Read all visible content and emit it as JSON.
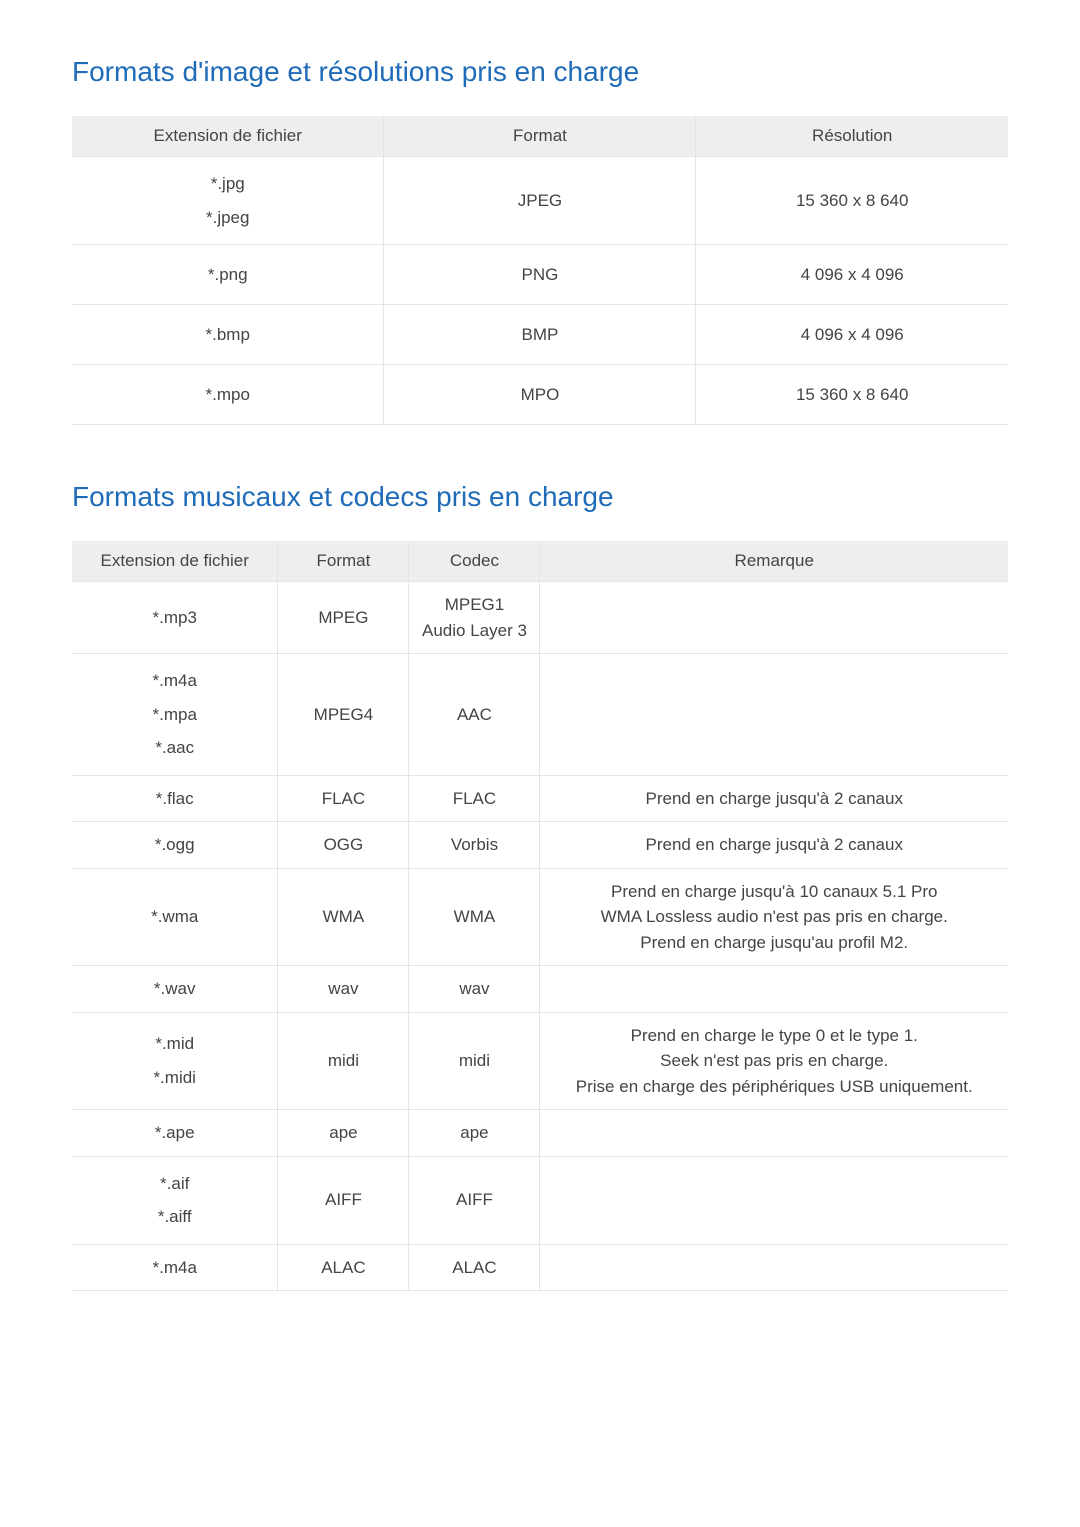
{
  "colors": {
    "heading": "#1f6bb8",
    "border": "#e5e5e5",
    "header_bg": "#eeeeee",
    "text": "#444444",
    "page_bg": "#ffffff"
  },
  "fonts": {
    "heading_size_pt": 21,
    "heading_weight": 400,
    "body_size_pt": 13
  },
  "sections": {
    "images": {
      "title": "Formats d'image et résolutions pris en charge",
      "columns": [
        "Extension de fichier",
        "Format",
        "Résolution"
      ],
      "column_widths_pct": [
        33.33,
        33.33,
        33.34
      ],
      "rows": [
        {
          "ext": [
            "*.jpg",
            "*.jpeg"
          ],
          "format": "JPEG",
          "resolution": "15 360 x 8 640"
        },
        {
          "ext": [
            "*.png"
          ],
          "format": "PNG",
          "resolution": "4 096 x 4 096"
        },
        {
          "ext": [
            "*.bmp"
          ],
          "format": "BMP",
          "resolution": "4 096 x 4 096"
        },
        {
          "ext": [
            "*.mpo"
          ],
          "format": "MPO",
          "resolution": "15 360 x 8 640"
        }
      ]
    },
    "music": {
      "title": "Formats musicaux et codecs pris en charge",
      "columns": [
        "Extension de fichier",
        "Format",
        "Codec",
        "Remarque"
      ],
      "column_widths_pct": [
        22,
        14,
        14,
        50
      ],
      "rows": [
        {
          "ext": [
            "*.mp3"
          ],
          "format": "MPEG",
          "codec": "MPEG1 Audio Layer 3",
          "remark": ""
        },
        {
          "ext": [
            "*.m4a",
            "*.mpa",
            "*.aac"
          ],
          "format": "MPEG4",
          "codec": "AAC",
          "remark": ""
        },
        {
          "ext": [
            "*.flac"
          ],
          "format": "FLAC",
          "codec": "FLAC",
          "remark": "Prend en charge jusqu'à 2 canaux"
        },
        {
          "ext": [
            "*.ogg"
          ],
          "format": "OGG",
          "codec": "Vorbis",
          "remark": "Prend en charge jusqu'à 2 canaux"
        },
        {
          "ext": [
            "*.wma"
          ],
          "format": "WMA",
          "codec": "WMA",
          "remark": "Prend en charge jusqu'à 10 canaux 5.1 Pro\nWMA Lossless audio n'est pas pris en charge.\nPrend en charge jusqu'au profil M2."
        },
        {
          "ext": [
            "*.wav"
          ],
          "format": "wav",
          "codec": "wav",
          "remark": ""
        },
        {
          "ext": [
            "*.mid",
            "*.midi"
          ],
          "format": "midi",
          "codec": "midi",
          "remark": "Prend en charge le type 0 et le type 1.\nSeek n'est pas pris en charge.\nPrise en charge des périphériques USB uniquement."
        },
        {
          "ext": [
            "*.ape"
          ],
          "format": "ape",
          "codec": "ape",
          "remark": ""
        },
        {
          "ext": [
            "*.aif",
            "*.aiff"
          ],
          "format": "AIFF",
          "codec": "AIFF",
          "remark": ""
        },
        {
          "ext": [
            "*.m4a"
          ],
          "format": "ALAC",
          "codec": "ALAC",
          "remark": ""
        }
      ]
    }
  }
}
